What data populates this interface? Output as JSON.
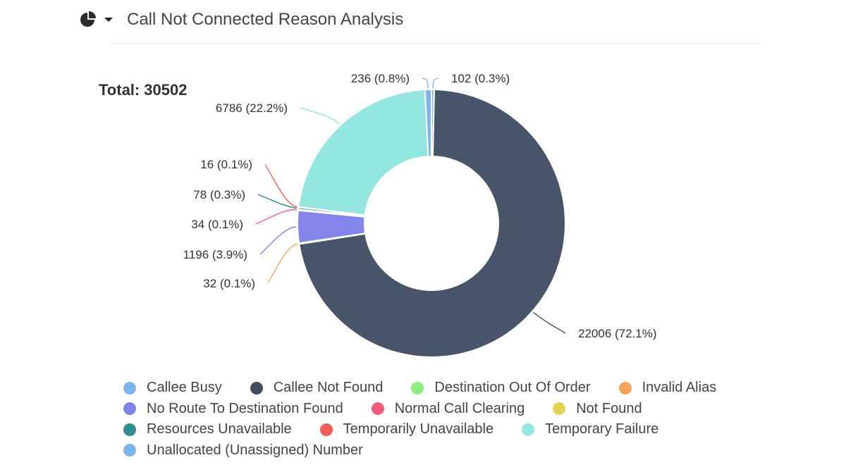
{
  "header": {
    "title": "Call Not Connected Reason Analysis",
    "chart_type_icon": "pie-chart-icon",
    "dropdown_icon": "caret-down-icon"
  },
  "total": {
    "label": "Total:",
    "value": "30502"
  },
  "chart_data": {
    "type": "pie",
    "donut": true,
    "total": 30502,
    "slices": [
      {
        "name": "Unallocated (Unassigned) Number",
        "value": 102,
        "label": "102 (0.3%)",
        "color": "#85b7e8"
      },
      {
        "name": "Callee Not Found",
        "value": 22006,
        "label": "22006 (72.1%)",
        "color": "#475469"
      },
      {
        "name": "Invalid Alias",
        "value": 32,
        "label": "32 (0.1%)",
        "color": "#f5a462"
      },
      {
        "name": "No Route To Destination Found",
        "value": 1196,
        "label": "1196 (3.9%)",
        "color": "#8385ea"
      },
      {
        "name": "Normal Call Clearing",
        "value": 34,
        "label": "34 (0.1%)",
        "color": "#ee5f7f"
      },
      {
        "name": "Resources Unavailable",
        "value": 78,
        "label": "78 (0.3%)",
        "color": "#2a8c87"
      },
      {
        "name": "Temporarily Unavailable",
        "value": 16,
        "label": "16 (0.1%)",
        "color": "#ef5b5b"
      },
      {
        "name": "Temporary Failure",
        "value": 6786,
        "label": "6786 (22.2%)",
        "color": "#93e5e0"
      },
      {
        "name": "Callee Busy",
        "value": 236,
        "label": "236 (0.8%)",
        "color": "#7cb5ec"
      }
    ]
  },
  "legend": [
    [
      {
        "label": "Callee Busy",
        "color": "#7cb5ec"
      },
      {
        "label": "Callee Not Found",
        "color": "#434d5e"
      },
      {
        "label": "Destination Out Of Order",
        "color": "#90ed7d"
      },
      {
        "label": "Invalid Alias",
        "color": "#f7a35c"
      }
    ],
    [
      {
        "label": "No Route To Destination Found",
        "color": "#8085e9"
      },
      {
        "label": "Normal Call Clearing",
        "color": "#f15c80"
      },
      {
        "label": "Not Found",
        "color": "#e4d354"
      }
    ],
    [
      {
        "label": "Resources Unavailable",
        "color": "#2b908f"
      },
      {
        "label": "Temporarily Unavailable",
        "color": "#f45b5b"
      },
      {
        "label": "Temporary Failure",
        "color": "#91e8e1"
      }
    ],
    [
      {
        "label": "Unallocated (Unassigned) Number",
        "color": "#7cb5ec"
      }
    ]
  ]
}
